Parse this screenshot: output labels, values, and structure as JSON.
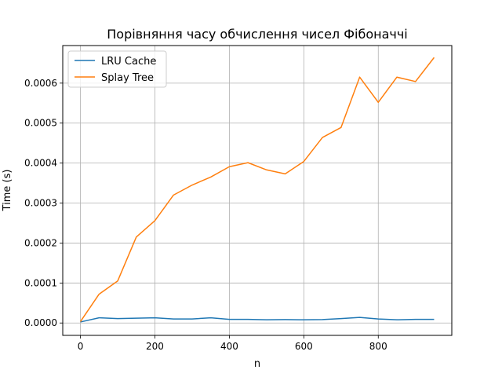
{
  "chart_data": {
    "type": "line",
    "title": "Порівняння часу обчислення чисел Фібоначчі",
    "xlabel": "n",
    "ylabel": "Time (s)",
    "xlim": [
      -47.5,
      997.5
    ],
    "ylim": [
      -3.1e-05,
      0.000694
    ],
    "x_ticks": [
      0,
      200,
      400,
      600,
      800
    ],
    "x_tick_labels": [
      "0",
      "200",
      "400",
      "600",
      "800"
    ],
    "y_ticks": [
      0,
      0.0001,
      0.0002,
      0.0003,
      0.0004,
      0.0005,
      0.0006
    ],
    "y_tick_labels": [
      "0.0000",
      "0.0001",
      "0.0002",
      "0.0003",
      "0.0004",
      "0.0005",
      "0.0006"
    ],
    "grid": true,
    "legend_position": "top-left",
    "x": [
      0,
      50,
      100,
      150,
      200,
      250,
      300,
      350,
      400,
      450,
      500,
      550,
      600,
      650,
      700,
      750,
      800,
      850,
      900,
      950
    ],
    "series": [
      {
        "name": "LRU Cache",
        "color": "#1f77b4",
        "values": [
          2.5e-06,
          1.3e-05,
          1.1e-05,
          1.2e-05,
          1.3e-05,
          1e-05,
          1e-05,
          1.3e-05,
          9e-06,
          9e-06,
          8e-06,
          8.5e-06,
          8e-06,
          8.5e-06,
          1.1e-05,
          1.4e-05,
          1e-05,
          8e-06,
          9e-06,
          9e-06
        ]
      },
      {
        "name": "Splay Tree",
        "color": "#ff7f0e",
        "values": [
          3.5e-06,
          7.2e-05,
          0.000105,
          0.000215,
          0.000256,
          0.00032,
          0.000345,
          0.000365,
          0.000391,
          0.000401,
          0.000383,
          0.000373,
          0.000404,
          0.000464,
          0.000489,
          0.000615,
          0.000552,
          0.000615,
          0.000604,
          0.000664
        ]
      }
    ]
  }
}
